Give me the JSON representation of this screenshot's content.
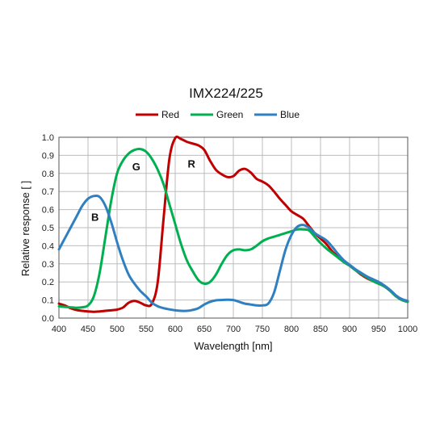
{
  "chart_data": {
    "type": "line",
    "title": "IMX224/225",
    "xlabel": "Wavelength [nm]",
    "ylabel": "Relative response [ ]",
    "xlim": [
      400,
      1000
    ],
    "ylim": [
      0,
      1.0
    ],
    "xticks": [
      400,
      450,
      500,
      550,
      600,
      650,
      700,
      750,
      800,
      850,
      900,
      950,
      1000
    ],
    "xtick_labels": [
      "400",
      "450",
      "500",
      "550",
      "600",
      "650",
      "700",
      "750",
      "800",
      "850",
      "900",
      "950",
      "1000"
    ],
    "yticks": [
      0,
      0.1,
      0.2,
      0.3,
      0.4,
      0.5,
      0.6,
      0.7,
      0.8,
      0.9,
      1.0
    ],
    "ytick_labels": [
      "0.0",
      "0.1",
      "0.2",
      "0.3",
      "0.4",
      "0.5",
      "0.6",
      "0.7",
      "0.8",
      "0.9",
      "1.0"
    ],
    "grid": true,
    "legend_position": "top-center",
    "series": [
      {
        "name": "Red",
        "color": "#c00000",
        "points": [
          [
            400,
            0.08
          ],
          [
            410,
            0.07
          ],
          [
            420,
            0.055
          ],
          [
            430,
            0.045
          ],
          [
            440,
            0.04
          ],
          [
            450,
            0.037
          ],
          [
            460,
            0.035
          ],
          [
            470,
            0.037
          ],
          [
            480,
            0.04
          ],
          [
            490,
            0.043
          ],
          [
            500,
            0.047
          ],
          [
            510,
            0.058
          ],
          [
            520,
            0.085
          ],
          [
            530,
            0.095
          ],
          [
            540,
            0.085
          ],
          [
            550,
            0.07
          ],
          [
            560,
            0.08
          ],
          [
            570,
            0.2
          ],
          [
            580,
            0.55
          ],
          [
            590,
            0.88
          ],
          [
            600,
            0.995
          ],
          [
            610,
            0.99
          ],
          [
            620,
            0.975
          ],
          [
            630,
            0.965
          ],
          [
            640,
            0.955
          ],
          [
            650,
            0.93
          ],
          [
            660,
            0.87
          ],
          [
            670,
            0.82
          ],
          [
            680,
            0.795
          ],
          [
            690,
            0.78
          ],
          [
            700,
            0.785
          ],
          [
            710,
            0.815
          ],
          [
            720,
            0.825
          ],
          [
            730,
            0.805
          ],
          [
            740,
            0.77
          ],
          [
            750,
            0.755
          ],
          [
            760,
            0.735
          ],
          [
            770,
            0.7
          ],
          [
            780,
            0.66
          ],
          [
            790,
            0.625
          ],
          [
            800,
            0.59
          ],
          [
            810,
            0.57
          ],
          [
            820,
            0.55
          ],
          [
            830,
            0.51
          ],
          [
            840,
            0.47
          ],
          [
            850,
            0.44
          ],
          [
            860,
            0.41
          ],
          [
            870,
            0.37
          ],
          [
            880,
            0.34
          ],
          [
            890,
            0.31
          ],
          [
            900,
            0.29
          ],
          [
            910,
            0.265
          ],
          [
            920,
            0.24
          ],
          [
            930,
            0.22
          ],
          [
            940,
            0.205
          ],
          [
            950,
            0.19
          ],
          [
            960,
            0.175
          ],
          [
            970,
            0.15
          ],
          [
            980,
            0.12
          ],
          [
            990,
            0.1
          ],
          [
            1000,
            0.09
          ]
        ]
      },
      {
        "name": "Green",
        "color": "#00b050",
        "points": [
          [
            400,
            0.065
          ],
          [
            410,
            0.062
          ],
          [
            420,
            0.06
          ],
          [
            430,
            0.057
          ],
          [
            440,
            0.06
          ],
          [
            450,
            0.07
          ],
          [
            460,
            0.12
          ],
          [
            470,
            0.25
          ],
          [
            480,
            0.45
          ],
          [
            490,
            0.65
          ],
          [
            500,
            0.8
          ],
          [
            510,
            0.87
          ],
          [
            520,
            0.91
          ],
          [
            530,
            0.93
          ],
          [
            540,
            0.935
          ],
          [
            550,
            0.92
          ],
          [
            560,
            0.88
          ],
          [
            570,
            0.82
          ],
          [
            580,
            0.74
          ],
          [
            590,
            0.63
          ],
          [
            600,
            0.52
          ],
          [
            610,
            0.41
          ],
          [
            620,
            0.32
          ],
          [
            630,
            0.26
          ],
          [
            640,
            0.21
          ],
          [
            650,
            0.19
          ],
          [
            660,
            0.2
          ],
          [
            670,
            0.24
          ],
          [
            680,
            0.3
          ],
          [
            690,
            0.35
          ],
          [
            700,
            0.375
          ],
          [
            710,
            0.38
          ],
          [
            720,
            0.375
          ],
          [
            730,
            0.38
          ],
          [
            740,
            0.4
          ],
          [
            750,
            0.425
          ],
          [
            760,
            0.44
          ],
          [
            770,
            0.45
          ],
          [
            780,
            0.46
          ],
          [
            790,
            0.47
          ],
          [
            800,
            0.48
          ],
          [
            810,
            0.49
          ],
          [
            820,
            0.49
          ],
          [
            830,
            0.485
          ],
          [
            840,
            0.45
          ],
          [
            850,
            0.415
          ],
          [
            860,
            0.385
          ],
          [
            870,
            0.36
          ],
          [
            880,
            0.335
          ],
          [
            890,
            0.31
          ],
          [
            900,
            0.29
          ],
          [
            910,
            0.265
          ],
          [
            920,
            0.245
          ],
          [
            930,
            0.225
          ],
          [
            940,
            0.205
          ],
          [
            950,
            0.19
          ],
          [
            960,
            0.175
          ],
          [
            970,
            0.15
          ],
          [
            980,
            0.12
          ],
          [
            990,
            0.1
          ],
          [
            1000,
            0.09
          ]
        ]
      },
      {
        "name": "Blue",
        "color": "#2f7fc1",
        "points": [
          [
            400,
            0.38
          ],
          [
            410,
            0.44
          ],
          [
            420,
            0.5
          ],
          [
            430,
            0.56
          ],
          [
            440,
            0.62
          ],
          [
            450,
            0.66
          ],
          [
            460,
            0.675
          ],
          [
            470,
            0.67
          ],
          [
            480,
            0.62
          ],
          [
            490,
            0.53
          ],
          [
            500,
            0.42
          ],
          [
            510,
            0.32
          ],
          [
            520,
            0.24
          ],
          [
            530,
            0.19
          ],
          [
            540,
            0.15
          ],
          [
            550,
            0.12
          ],
          [
            560,
            0.085
          ],
          [
            570,
            0.065
          ],
          [
            580,
            0.055
          ],
          [
            590,
            0.048
          ],
          [
            600,
            0.043
          ],
          [
            610,
            0.04
          ],
          [
            620,
            0.04
          ],
          [
            630,
            0.045
          ],
          [
            640,
            0.055
          ],
          [
            650,
            0.075
          ],
          [
            660,
            0.09
          ],
          [
            670,
            0.098
          ],
          [
            680,
            0.1
          ],
          [
            690,
            0.102
          ],
          [
            700,
            0.1
          ],
          [
            710,
            0.09
          ],
          [
            720,
            0.08
          ],
          [
            730,
            0.075
          ],
          [
            740,
            0.07
          ],
          [
            750,
            0.07
          ],
          [
            760,
            0.08
          ],
          [
            770,
            0.14
          ],
          [
            780,
            0.26
          ],
          [
            790,
            0.38
          ],
          [
            800,
            0.46
          ],
          [
            810,
            0.505
          ],
          [
            820,
            0.515
          ],
          [
            830,
            0.5
          ],
          [
            840,
            0.47
          ],
          [
            850,
            0.45
          ],
          [
            860,
            0.43
          ],
          [
            870,
            0.395
          ],
          [
            880,
            0.355
          ],
          [
            890,
            0.32
          ],
          [
            900,
            0.295
          ],
          [
            910,
            0.27
          ],
          [
            920,
            0.25
          ],
          [
            930,
            0.23
          ],
          [
            940,
            0.215
          ],
          [
            950,
            0.2
          ],
          [
            960,
            0.18
          ],
          [
            970,
            0.155
          ],
          [
            980,
            0.125
          ],
          [
            990,
            0.105
          ],
          [
            1000,
            0.095
          ]
        ]
      }
    ],
    "annotations": [
      {
        "text": "B",
        "x": 462,
        "y": 0.56
      },
      {
        "text": "G",
        "x": 533,
        "y": 0.84
      },
      {
        "text": "R",
        "x": 628,
        "y": 0.855
      }
    ]
  }
}
